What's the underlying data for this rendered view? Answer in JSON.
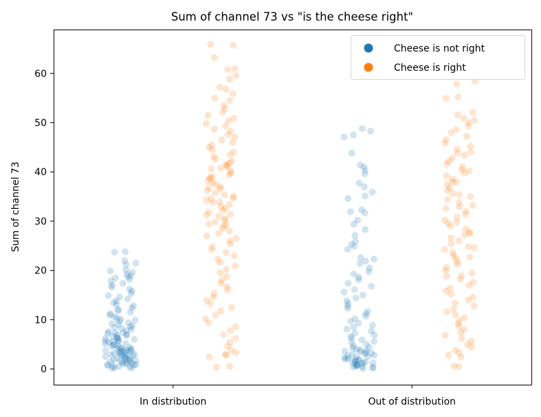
{
  "chart_data": {
    "type": "scatter",
    "subtype": "stripplot",
    "title": "Sum of channel 73 vs \"is the cheese right\"",
    "xlabel": "",
    "ylabel": "Sum of channel 73",
    "categories": [
      "In distribution",
      "Out of distribution"
    ],
    "yticks": [
      0,
      10,
      20,
      30,
      40,
      50,
      60
    ],
    "ytick_labels": [
      "0",
      "10",
      "20",
      "30",
      "40",
      "50",
      "60"
    ],
    "ylim": [
      -3.2,
      68.9
    ],
    "grid": false,
    "legend": {
      "placement": "upper-right",
      "entries": [
        {
          "label": "Cheese is not right",
          "color": "#1f77b4"
        },
        {
          "label": "Cheese is right",
          "color": "#ff7f0e"
        }
      ]
    },
    "point_alpha": 0.2,
    "series": [
      {
        "name": "Cheese is not right",
        "color": "#1f77b4",
        "groups": [
          {
            "category": "In distribution",
            "values": [
              23.8,
              23.7,
              22.0,
              21.5,
              21.2,
              20.1,
              19.9,
              19.6,
              19.2,
              18.9,
              18.7,
              18.5,
              18.2,
              17.9,
              17.4,
              17.0,
              16.6,
              16.2,
              15.8,
              15.3,
              14.9,
              14.6,
              14.2,
              13.8,
              13.5,
              13.1,
              12.8,
              12.4,
              12.1,
              11.8,
              11.5,
              11.2,
              10.9,
              10.6,
              10.3,
              10.1,
              9.9,
              9.7,
              9.4,
              9.2,
              9.0,
              8.8,
              8.6,
              8.4,
              8.2,
              8.0,
              7.8,
              7.6,
              7.4,
              7.2,
              7.0,
              6.9,
              6.8,
              6.6,
              6.4,
              6.3,
              6.1,
              6.0,
              5.8,
              5.7,
              5.5,
              5.4,
              5.2,
              5.1,
              5.0,
              4.8,
              4.7,
              4.6,
              4.4,
              4.3,
              4.2,
              4.0,
              3.9,
              3.8,
              3.7,
              3.6,
              3.5,
              3.4,
              3.3,
              3.2,
              3.1,
              3.0,
              2.9,
              2.8,
              2.7,
              2.6,
              2.5,
              2.4,
              2.3,
              2.2,
              2.1,
              2.0,
              1.9,
              1.8,
              1.7,
              1.6,
              1.5,
              1.4,
              1.3,
              1.2,
              1.1,
              1.0,
              0.9,
              0.8,
              0.7,
              0.6,
              0.5,
              0.4,
              0.3,
              0.2,
              0.1,
              3.5,
              4.1,
              5.6,
              6.2,
              7.3,
              2.8,
              3.9,
              1.6,
              0.9
            ]
          },
          {
            "category": "Out of distribution",
            "values": [
              48.8,
              48.3,
              47.5,
              47.1,
              43.8,
              41.4,
              41.0,
              40.3,
              39.6,
              37.7,
              37.0,
              35.9,
              35.1,
              34.6,
              32.3,
              31.9,
              31.7,
              30.2,
              29.4,
              28.3,
              27.1,
              25.9,
              25.3,
              24.9,
              24.3,
              22.6,
              22.3,
              21.9,
              21.4,
              20.5,
              19.7,
              19.3,
              18.6,
              18.1,
              17.4,
              16.8,
              16.1,
              15.6,
              15.0,
              14.4,
              13.9,
              13.3,
              12.8,
              12.3,
              11.7,
              11.2,
              10.7,
              10.2,
              9.7,
              9.3,
              8.9,
              8.5,
              8.1,
              7.7,
              7.3,
              6.9,
              6.6,
              6.2,
              5.9,
              5.6,
              5.3,
              5.0,
              4.7,
              4.4,
              4.2,
              3.9,
              3.7,
              3.5,
              3.3,
              3.1,
              2.9,
              2.7,
              2.5,
              2.3,
              2.1,
              1.9,
              1.8,
              1.6,
              1.4,
              1.3,
              1.1,
              1.0,
              0.8,
              0.7,
              0.5,
              0.4,
              0.3,
              0.2,
              0.1,
              2.4,
              3.2,
              1.5,
              2.0,
              4.0,
              0.6,
              1.2,
              2.8,
              3.6,
              0.9,
              1.7
            ]
          }
        ]
      },
      {
        "name": "Cheese is right",
        "color": "#ff7f0e",
        "groups": [
          {
            "category": "In distribution",
            "values": [
              65.9,
              65.7,
              63.2,
              61.0,
              60.8,
              59.6,
              58.8,
              57.2,
              56.8,
              55.9,
              55.0,
              54.5,
              53.5,
              52.8,
              52.1,
              51.5,
              50.9,
              50.4,
              49.8,
              49.3,
              48.7,
              48.2,
              47.6,
              47.1,
              46.5,
              46.0,
              45.5,
              45.0,
              44.5,
              44.0,
              43.5,
              43.1,
              42.6,
              42.2,
              41.8,
              41.4,
              41.0,
              40.6,
              40.2,
              39.8,
              39.4,
              39.0,
              38.6,
              38.2,
              37.8,
              37.4,
              37.0,
              36.6,
              36.2,
              35.8,
              35.4,
              35.0,
              34.6,
              34.2,
              33.8,
              33.4,
              33.0,
              32.6,
              32.2,
              31.8,
              31.4,
              31.0,
              30.6,
              30.2,
              29.8,
              29.4,
              29.0,
              28.5,
              28.0,
              27.5,
              27.0,
              26.5,
              26.0,
              25.4,
              24.8,
              24.2,
              23.6,
              23.0,
              22.3,
              21.6,
              20.9,
              20.2,
              19.5,
              18.8,
              18.1,
              17.4,
              16.7,
              16.0,
              15.3,
              14.6,
              13.9,
              13.2,
              12.5,
              11.8,
              11.0,
              10.2,
              9.4,
              8.6,
              7.8,
              7.0,
              6.2,
              5.4,
              4.6,
              3.8,
              3.3,
              3.0,
              2.8,
              2.4,
              0.5,
              0.4,
              41.5,
              40.8,
              34.7,
              33.9,
              31.3,
              29.3,
              36.8,
              38.9
            ]
          },
          {
            "category": "Out of distribution",
            "values": [
              58.4,
              57.8,
              55.2,
              54.9,
              52.1,
              51.6,
              50.9,
              50.5,
              50.0,
              49.3,
              48.6,
              48.0,
              47.2,
              46.5,
              45.8,
              45.2,
              44.6,
              44.0,
              43.4,
              42.8,
              42.2,
              41.6,
              41.0,
              40.4,
              39.8,
              39.2,
              38.6,
              38.0,
              37.4,
              36.8,
              36.2,
              35.6,
              35.0,
              34.4,
              33.8,
              33.2,
              32.6,
              32.0,
              31.4,
              30.8,
              30.2,
              29.6,
              29.0,
              28.4,
              27.8,
              27.2,
              26.6,
              26.0,
              25.4,
              24.8,
              24.2,
              23.6,
              23.0,
              22.4,
              21.8,
              21.2,
              20.6,
              20.0,
              19.4,
              18.8,
              18.2,
              17.6,
              17.0,
              16.4,
              15.8,
              15.2,
              14.6,
              14.0,
              13.4,
              12.8,
              12.2,
              11.6,
              11.0,
              10.4,
              9.8,
              9.2,
              8.6,
              8.0,
              7.4,
              6.8,
              6.2,
              5.6,
              5.0,
              4.4,
              3.8,
              3.3,
              2.8,
              2.4,
              0.6,
              0.5,
              40.2,
              35.4,
              29.8,
              27.5,
              24.6,
              32.9,
              37.9,
              43.8,
              22.7,
              18.9
            ]
          }
        ]
      }
    ]
  }
}
